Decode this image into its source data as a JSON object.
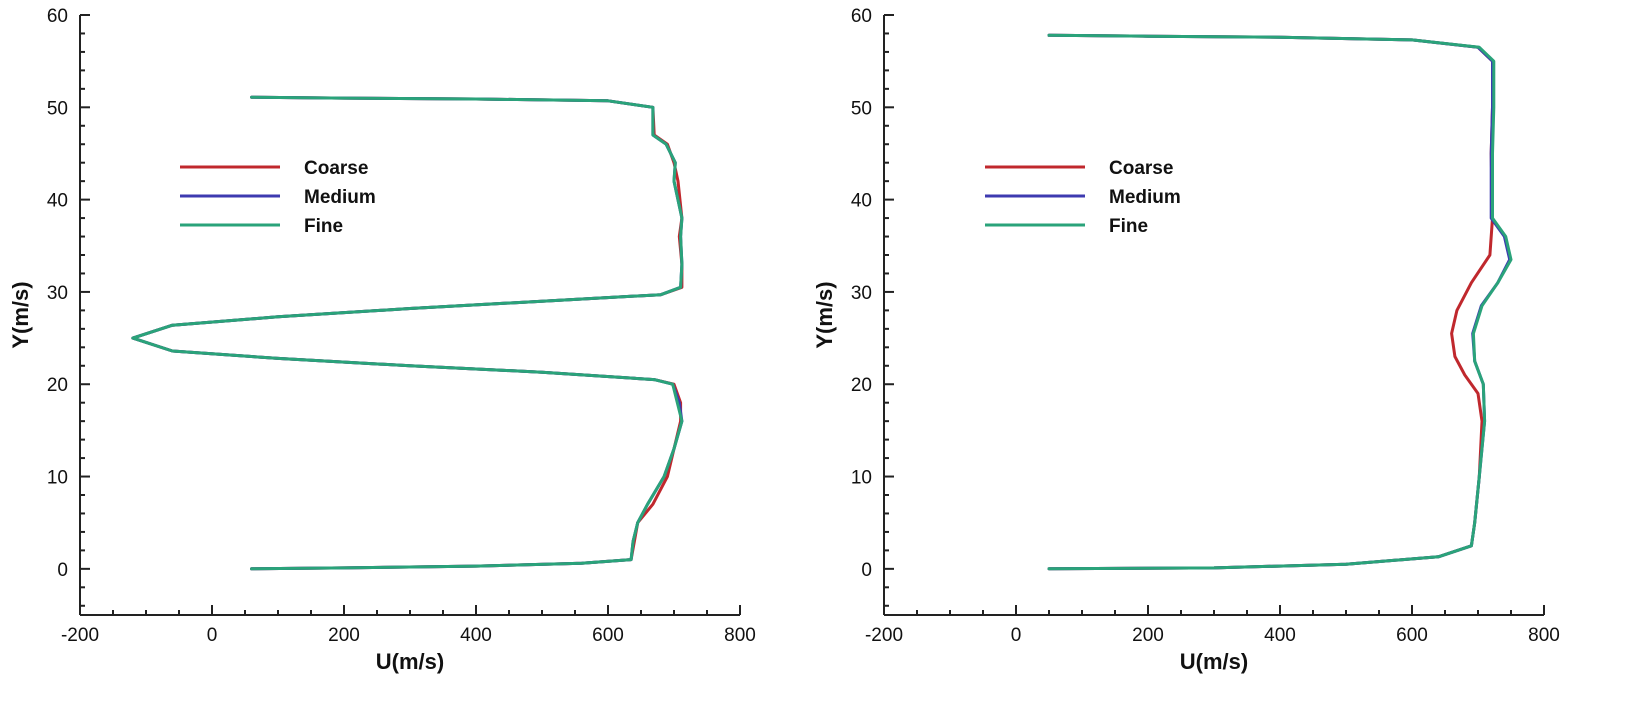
{
  "chart_data": [
    {
      "type": "line",
      "xlabel": "U(m/s)",
      "ylabel": "Y(m/s)",
      "xlim": [
        -200,
        800
      ],
      "ylim": [
        -5,
        60
      ],
      "xticks": [
        -200,
        0,
        200,
        400,
        600,
        800
      ],
      "yticks": [
        0,
        10,
        20,
        30,
        40,
        50,
        60
      ],
      "legend": "left",
      "colors": {
        "Coarse": "#c0282d",
        "Medium": "#3d3ab0",
        "Fine": "#2aa37a"
      },
      "series": [
        {
          "name": "Coarse",
          "points": [
            [
              60,
              0
            ],
            [
              200,
              0.1
            ],
            [
              400,
              0.3
            ],
            [
              560,
              0.6
            ],
            [
              635,
              1
            ],
            [
              640,
              3
            ],
            [
              645,
              5
            ],
            [
              668,
              7
            ],
            [
              690,
              10
            ],
            [
              700,
              13
            ],
            [
              710,
              16
            ],
            [
              710,
              18
            ],
            [
              700,
              20
            ],
            [
              670,
              20.5
            ],
            [
              500,
              21.3
            ],
            [
              300,
              22
            ],
            [
              100,
              22.8
            ],
            [
              -60,
              23.6
            ],
            [
              -120,
              25
            ],
            [
              -60,
              26.4
            ],
            [
              100,
              27.3
            ],
            [
              300,
              28.2
            ],
            [
              500,
              29
            ],
            [
              680,
              29.7
            ],
            [
              712,
              30.5
            ],
            [
              712,
              33
            ],
            [
              708,
              36
            ],
            [
              712,
              38
            ],
            [
              706,
              42
            ],
            [
              700,
              44
            ],
            [
              690,
              46
            ],
            [
              670,
              47
            ],
            [
              668,
              50
            ],
            [
              600,
              50.7
            ],
            [
              400,
              50.9
            ],
            [
              200,
              51
            ],
            [
              60,
              51.1
            ]
          ]
        },
        {
          "name": "Medium",
          "points": [
            [
              60,
              0
            ],
            [
              200,
              0.1
            ],
            [
              400,
              0.3
            ],
            [
              560,
              0.6
            ],
            [
              635,
              1
            ],
            [
              638,
              3
            ],
            [
              645,
              5
            ],
            [
              660,
              7
            ],
            [
              685,
              10
            ],
            [
              700,
              13
            ],
            [
              712,
              16
            ],
            [
              708,
              18
            ],
            [
              698,
              20
            ],
            [
              670,
              20.5
            ],
            [
              500,
              21.3
            ],
            [
              300,
              22
            ],
            [
              100,
              22.8
            ],
            [
              -60,
              23.6
            ],
            [
              -120,
              25
            ],
            [
              -60,
              26.4
            ],
            [
              100,
              27.3
            ],
            [
              300,
              28.2
            ],
            [
              500,
              29
            ],
            [
              680,
              29.7
            ],
            [
              710,
              30.5
            ],
            [
              712,
              33
            ],
            [
              710,
              36
            ],
            [
              712,
              38
            ],
            [
              700,
              42
            ],
            [
              702,
              44
            ],
            [
              688,
              46
            ],
            [
              668,
              47
            ],
            [
              668,
              50
            ],
            [
              600,
              50.7
            ],
            [
              400,
              50.9
            ],
            [
              200,
              51
            ],
            [
              60,
              51.1
            ]
          ]
        },
        {
          "name": "Fine",
          "points": [
            [
              60,
              0
            ],
            [
              200,
              0.1
            ],
            [
              400,
              0.3
            ],
            [
              560,
              0.6
            ],
            [
              635,
              1
            ],
            [
              638,
              3
            ],
            [
              645,
              5
            ],
            [
              660,
              7
            ],
            [
              685,
              10
            ],
            [
              700,
              13
            ],
            [
              712,
              16
            ],
            [
              705,
              18
            ],
            [
              698,
              20
            ],
            [
              670,
              20.5
            ],
            [
              500,
              21.3
            ],
            [
              300,
              22
            ],
            [
              100,
              22.8
            ],
            [
              -60,
              23.6
            ],
            [
              -120,
              25
            ],
            [
              -60,
              26.4
            ],
            [
              100,
              27.3
            ],
            [
              300,
              28.2
            ],
            [
              500,
              29
            ],
            [
              680,
              29.7
            ],
            [
              710,
              30.5
            ],
            [
              712,
              33
            ],
            [
              710,
              36
            ],
            [
              712,
              38
            ],
            [
              700,
              42
            ],
            [
              702,
              44
            ],
            [
              688,
              46
            ],
            [
              668,
              47
            ],
            [
              668,
              50
            ],
            [
              600,
              50.7
            ],
            [
              400,
              50.9
            ],
            [
              200,
              51
            ],
            [
              60,
              51.1
            ]
          ]
        }
      ]
    },
    {
      "type": "line",
      "xlabel": "U(m/s)",
      "ylabel": "Y(m/s)",
      "xlim": [
        -200,
        800
      ],
      "ylim": [
        -5,
        60
      ],
      "xticks": [
        -200,
        0,
        200,
        400,
        600,
        800
      ],
      "yticks": [
        0,
        10,
        20,
        30,
        40,
        50,
        60
      ],
      "legend": "left",
      "colors": {
        "Coarse": "#c0282d",
        "Medium": "#3d3ab0",
        "Fine": "#2aa37a"
      },
      "series": [
        {
          "name": "Coarse",
          "points": [
            [
              50,
              0
            ],
            [
              300,
              0.1
            ],
            [
              500,
              0.5
            ],
            [
              640,
              1.3
            ],
            [
              690,
              2.5
            ],
            [
              695,
              5
            ],
            [
              702,
              10
            ],
            [
              706,
              16
            ],
            [
              700,
              19
            ],
            [
              680,
              21
            ],
            [
              665,
              23
            ],
            [
              660,
              25.5
            ],
            [
              668,
              28
            ],
            [
              690,
              31
            ],
            [
              718,
              34
            ],
            [
              722,
              38
            ],
            [
              720,
              45
            ],
            [
              722,
              50
            ],
            [
              722,
              55
            ],
            [
              700,
              56.5
            ],
            [
              600,
              57.3
            ],
            [
              400,
              57.6
            ],
            [
              200,
              57.7
            ],
            [
              50,
              57.8
            ]
          ]
        },
        {
          "name": "Medium",
          "points": [
            [
              50,
              0
            ],
            [
              300,
              0.1
            ],
            [
              500,
              0.5
            ],
            [
              640,
              1.3
            ],
            [
              690,
              2.5
            ],
            [
              695,
              5
            ],
            [
              702,
              10
            ],
            [
              710,
              16
            ],
            [
              708,
              20
            ],
            [
              695,
              22.5
            ],
            [
              692,
              25.5
            ],
            [
              705,
              28.5
            ],
            [
              730,
              31
            ],
            [
              748,
              33.5
            ],
            [
              740,
              36
            ],
            [
              720,
              38
            ],
            [
              720,
              45
            ],
            [
              722,
              50
            ],
            [
              722,
              55
            ],
            [
              700,
              56.5
            ],
            [
              600,
              57.3
            ],
            [
              400,
              57.6
            ],
            [
              200,
              57.7
            ],
            [
              50,
              57.8
            ]
          ]
        },
        {
          "name": "Fine",
          "points": [
            [
              50,
              0
            ],
            [
              300,
              0.1
            ],
            [
              500,
              0.5
            ],
            [
              640,
              1.3
            ],
            [
              690,
              2.5
            ],
            [
              695,
              5
            ],
            [
              702,
              10
            ],
            [
              710,
              16
            ],
            [
              708,
              20
            ],
            [
              695,
              22.5
            ],
            [
              693,
              25.5
            ],
            [
              706,
              28.5
            ],
            [
              730,
              31
            ],
            [
              750,
              33.5
            ],
            [
              742,
              36
            ],
            [
              722,
              38
            ],
            [
              722,
              45
            ],
            [
              724,
              50
            ],
            [
              724,
              55
            ],
            [
              702,
              56.5
            ],
            [
              600,
              57.3
            ],
            [
              400,
              57.6
            ],
            [
              200,
              57.7
            ],
            [
              50,
              57.8
            ]
          ]
        }
      ]
    }
  ]
}
